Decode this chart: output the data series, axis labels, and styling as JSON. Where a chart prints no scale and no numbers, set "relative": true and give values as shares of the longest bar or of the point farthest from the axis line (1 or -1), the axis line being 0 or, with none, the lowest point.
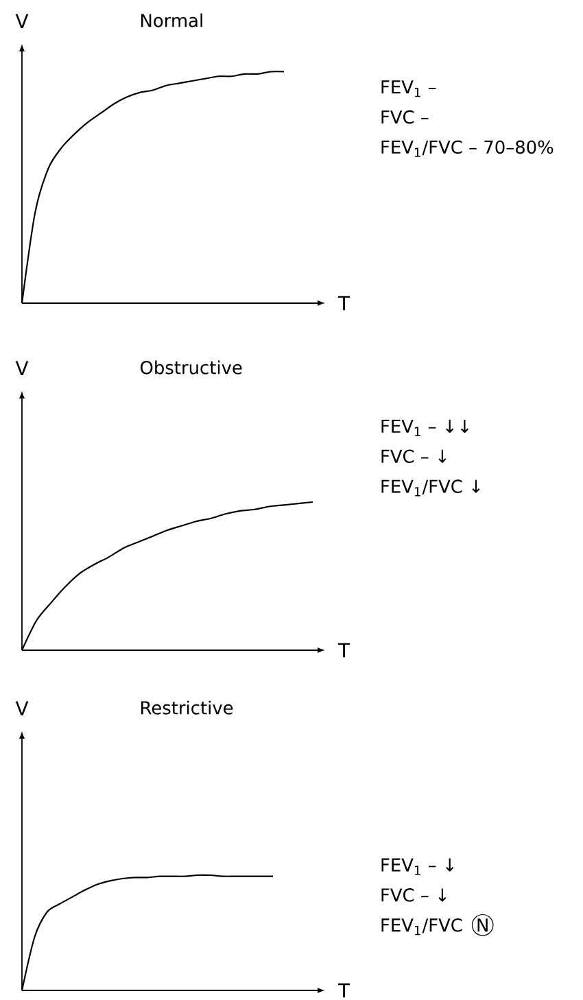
{
  "chart_data": [
    {
      "type": "line",
      "title": "Normal",
      "xlabel": "T",
      "ylabel": "V",
      "relative": true,
      "marker": "none",
      "categories": [
        null,
        null,
        null,
        null,
        null,
        null,
        null,
        null,
        null,
        null,
        null,
        null,
        null,
        null,
        null,
        null,
        null,
        null,
        null,
        null,
        null
      ],
      "series": [
        {
          "color": "#000000",
          "values": [
            0,
            0.39,
            0.58,
            0.67,
            0.73,
            0.78,
            0.82,
            0.86,
            0.89,
            0.91,
            0.92,
            0.94,
            0.95,
            0.96,
            0.97,
            0.98,
            0.98,
            0.99,
            0.99,
            1,
            1
          ]
        }
      ],
      "annotations": [
        "FEV$_{1}$ –",
        "FVC –",
        "FEV$_{1}$/FVC – 70–80%"
      ]
    },
    {
      "type": "line",
      "title": "Obstructive",
      "xlabel": "T",
      "ylabel": "V",
      "relative": true,
      "marker": "none",
      "categories": [
        null,
        null,
        null,
        null,
        null,
        null,
        null,
        null,
        null,
        null,
        null,
        null,
        null,
        null,
        null,
        null,
        null,
        null,
        null,
        null,
        null
      ],
      "series": [
        {
          "color": "#000000",
          "values": [
            0,
            0.2,
            0.32,
            0.43,
            0.52,
            0.58,
            0.63,
            0.69,
            0.73,
            0.77,
            0.81,
            0.84,
            0.87,
            0.89,
            0.92,
            0.94,
            0.95,
            0.97,
            0.98,
            0.99,
            1
          ]
        }
      ],
      "annotations": [
        "FEV$_{1}$ – ↓↓",
        "FVC – ↓",
        "FEV$_{1}$/FVC ↓"
      ]
    },
    {
      "type": "line",
      "title": "Restrictive",
      "xlabel": "T",
      "ylabel": "V",
      "relative": true,
      "marker": "none",
      "categories": [
        null,
        null,
        null,
        null,
        null,
        null,
        null,
        null,
        null,
        null,
        null,
        null,
        null,
        null,
        null,
        null,
        null,
        null,
        null,
        null,
        null
      ],
      "series": [
        {
          "color": "#000000",
          "values": [
            0,
            0.46,
            0.68,
            0.75,
            0.81,
            0.87,
            0.92,
            0.95,
            0.97,
            0.98,
            0.98,
            0.99,
            0.99,
            0.99,
            1,
            1,
            0.99,
            0.99,
            0.99,
            0.99,
            0.99
          ]
        }
      ],
      "annotations": [
        "FEV$_{1}$ – ↓",
        "FVC – ↓",
        "FEV$_{1}$/FVC",
        "N"
      ]
    }
  ]
}
